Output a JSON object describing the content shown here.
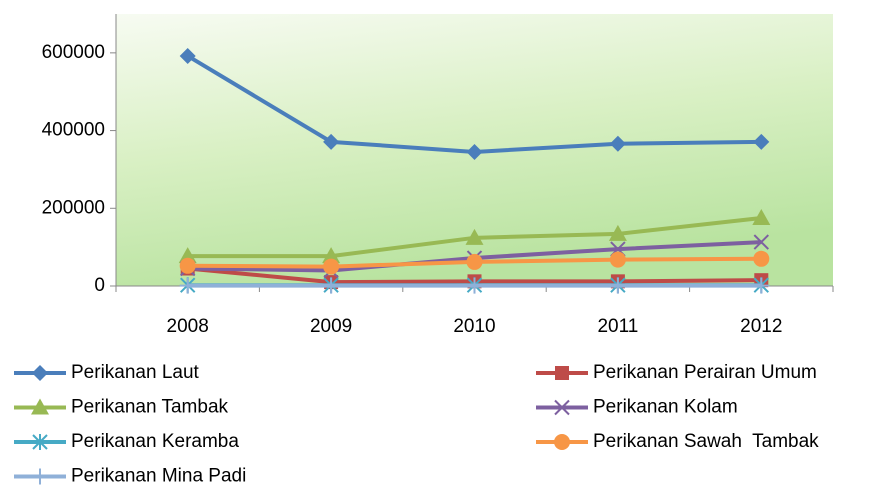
{
  "chart_data": {
    "type": "line",
    "categories": [
      "2008",
      "2009",
      "2010",
      "2011",
      "2012"
    ],
    "series": [
      {
        "name": "Perikanan Laut",
        "color": "#4a7ebb",
        "marker": "diamond",
        "values": [
          592000,
          371000,
          345000,
          366000,
          371000
        ]
      },
      {
        "name": "Perikanan Perairan Umum",
        "color": "#be4b48",
        "marker": "square",
        "values": [
          45000,
          10000,
          12000,
          12000,
          15000
        ]
      },
      {
        "name": "Perikanan Tambak",
        "color": "#98b954",
        "marker": "triangle",
        "values": [
          77000,
          77000,
          124000,
          134000,
          175000
        ]
      },
      {
        "name": "Perikanan Kolam",
        "color": "#7d60a0",
        "marker": "x",
        "values": [
          45000,
          40000,
          72000,
          95000,
          113000
        ]
      },
      {
        "name": "Perikanan Keramba",
        "color": "#46aac5",
        "marker": "asterisk",
        "values": [
          2000,
          2000,
          2000,
          2000,
          2000
        ]
      },
      {
        "name": "Perikanan Sawah  Tambak",
        "color": "#f79646",
        "marker": "circle",
        "values": [
          52000,
          50000,
          62000,
          68000,
          70000
        ]
      },
      {
        "name": "Perikanan Mina Padi",
        "color": "#8fb0d8",
        "marker": "plus",
        "values": [
          1000,
          1000,
          1000,
          1000,
          1000
        ]
      }
    ],
    "ylim": [
      0,
      700000
    ],
    "yticks": [
      0,
      200000,
      400000,
      600000
    ]
  }
}
